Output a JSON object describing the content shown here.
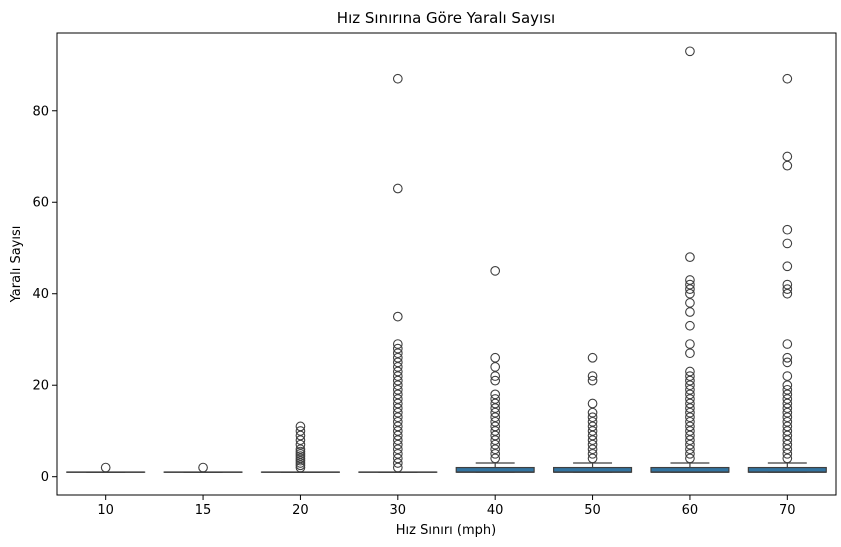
{
  "chart_data": {
    "type": "box",
    "title": "Hız Sınırına Göre Yaralı Sayısı",
    "xlabel": "Hız Sınırı (mph)",
    "ylabel": "Yaralı Sayısı",
    "categories": [
      "10",
      "15",
      "20",
      "30",
      "40",
      "50",
      "60",
      "70"
    ],
    "ylim": [
      -4,
      97
    ],
    "yticks": [
      0,
      20,
      40,
      60,
      80
    ],
    "grid": false,
    "box_color": "#3274a1",
    "boxes": [
      {
        "category": "10",
        "q1": 1,
        "median": 1,
        "q3": 1,
        "whisker_low": 1,
        "whisker_high": 1,
        "outliers": [
          2
        ]
      },
      {
        "category": "15",
        "q1": 1,
        "median": 1,
        "q3": 1,
        "whisker_low": 1,
        "whisker_high": 1,
        "outliers": [
          2
        ]
      },
      {
        "category": "20",
        "q1": 1,
        "median": 1,
        "q3": 1,
        "whisker_low": 1,
        "whisker_high": 1,
        "outliers": [
          2,
          2.5,
          3,
          3.5,
          4,
          4.5,
          5,
          5.5,
          6,
          7,
          8,
          9,
          10,
          11
        ]
      },
      {
        "category": "30",
        "q1": 1,
        "median": 1,
        "q3": 1,
        "whisker_low": 1,
        "whisker_high": 1,
        "outliers": [
          2,
          3,
          4,
          5,
          6,
          7,
          8,
          9,
          10,
          11,
          12,
          13,
          14,
          15,
          16,
          17,
          18,
          19,
          20,
          21,
          22,
          23,
          24,
          25,
          26,
          27,
          28,
          29,
          35,
          63,
          87
        ]
      },
      {
        "category": "40",
        "q1": 1,
        "median": 1,
        "q3": 2,
        "whisker_low": 1,
        "whisker_high": 3,
        "outliers": [
          4,
          5,
          6,
          7,
          8,
          9,
          10,
          11,
          12,
          13,
          14,
          15,
          16,
          17,
          18,
          21,
          22,
          24,
          26,
          45
        ]
      },
      {
        "category": "50",
        "q1": 1,
        "median": 1,
        "q3": 2,
        "whisker_low": 1,
        "whisker_high": 3,
        "outliers": [
          4,
          5,
          6,
          7,
          8,
          9,
          10,
          11,
          12,
          13,
          14,
          16,
          21,
          22,
          26
        ]
      },
      {
        "category": "60",
        "q1": 1,
        "median": 1,
        "q3": 2,
        "whisker_low": 1,
        "whisker_high": 3,
        "outliers": [
          4,
          5,
          6,
          7,
          8,
          9,
          10,
          11,
          12,
          13,
          14,
          15,
          16,
          17,
          18,
          19,
          20,
          21,
          22,
          23,
          27,
          29,
          33,
          36,
          38,
          40,
          41,
          42,
          43,
          48,
          93
        ]
      },
      {
        "category": "70",
        "q1": 1,
        "median": 1,
        "q3": 2,
        "whisker_low": 1,
        "whisker_high": 3,
        "outliers": [
          4,
          5,
          6,
          7,
          8,
          9,
          10,
          11,
          12,
          13,
          14,
          15,
          16,
          17,
          18,
          19,
          20,
          22,
          25,
          26,
          29,
          40,
          41,
          42,
          46,
          51,
          54,
          68,
          70,
          87
        ]
      }
    ]
  }
}
